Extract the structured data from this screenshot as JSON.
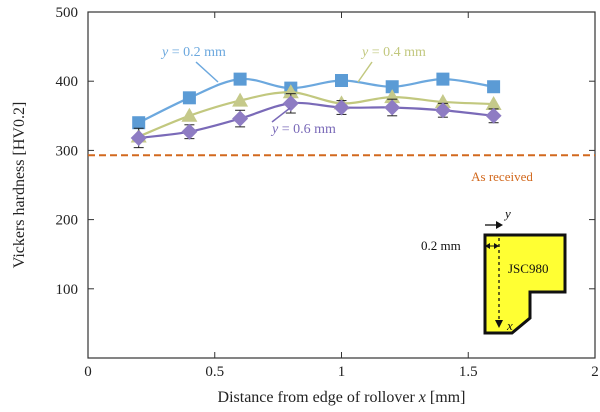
{
  "chart_data": {
    "type": "line",
    "xlabel_prefix": "Distance from edge of rollover ",
    "xlabel_var": "x",
    "xlabel_suffix": " [mm]",
    "ylabel": "Vickers hardness [HV0.2]",
    "xlim": [
      0,
      2
    ],
    "ylim": [
      0,
      500
    ],
    "xticks": [
      0,
      0.5,
      1,
      1.5,
      2
    ],
    "xtick_labels": [
      "0",
      "0.5",
      "1",
      "1.5",
      "2"
    ],
    "yticks": [
      100,
      200,
      300,
      400,
      500
    ],
    "ytick_labels": [
      "100",
      "200",
      "300",
      "400",
      "500"
    ],
    "grid": false,
    "series": [
      {
        "label_var": "y",
        "label_rest": " = 0.2 mm",
        "color": "#5B9BD5",
        "line_color": "#6CA8DE",
        "marker": "square",
        "x": [
          0.2,
          0.4,
          0.6,
          0.8,
          1.0,
          1.2,
          1.4,
          1.6
        ],
        "y": [
          340,
          376,
          403,
          390,
          401,
          392,
          403,
          392
        ],
        "err": [
          0,
          0,
          0,
          0,
          0,
          0,
          0,
          0
        ]
      },
      {
        "label_var": "y",
        "label_rest": " = 0.4 mm",
        "color": "#C5C98A",
        "line_color": "#C2C87F",
        "marker": "triangle",
        "x": [
          0.2,
          0.4,
          0.6,
          0.8,
          1.0,
          1.2,
          1.4,
          1.6
        ],
        "y": [
          320,
          350,
          372,
          384,
          368,
          377,
          370,
          367
        ],
        "err": [
          0,
          0,
          0,
          0,
          0,
          0,
          0,
          0
        ]
      },
      {
        "label_var": "y",
        "label_rest": " = 0.6 mm",
        "color": "#8E7CC3",
        "line_color": "#7A6AB8",
        "marker": "diamond",
        "x": [
          0.2,
          0.4,
          0.6,
          0.8,
          1.0,
          1.2,
          1.4,
          1.6
        ],
        "y": [
          318,
          327,
          346,
          368,
          362,
          362,
          358,
          350
        ],
        "err": [
          14,
          10,
          12,
          14,
          10,
          12,
          10,
          10
        ]
      }
    ],
    "reference_line": {
      "value": 293,
      "label": "As received",
      "color": "#D2691E"
    },
    "inset": {
      "label": "JSC980",
      "offset_label": "0.2 mm",
      "axis_y": "y",
      "axis_x": "x",
      "fill": "#FFFF33"
    }
  }
}
